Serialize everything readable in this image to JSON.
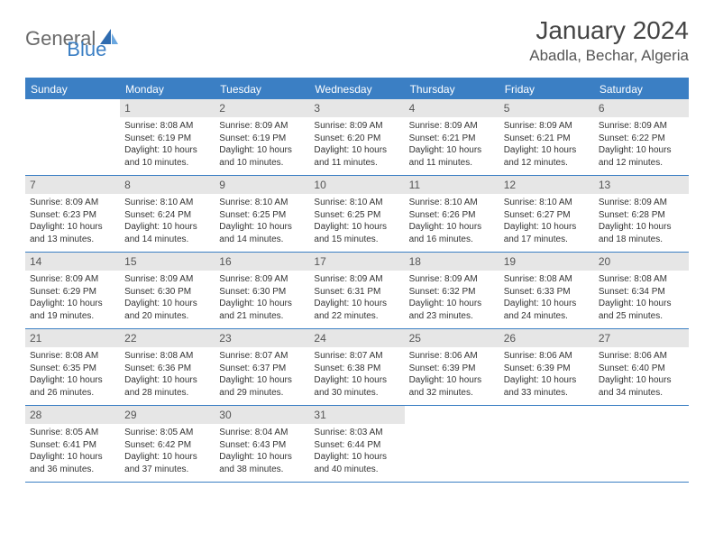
{
  "brand": {
    "part1": "General",
    "part2": "Blue"
  },
  "title": "January 2024",
  "location": "Abadla, Bechar, Algeria",
  "colors": {
    "accent": "#3b7fc4",
    "dayHeaderBg": "#e6e6e6",
    "text": "#333333"
  },
  "daysOfWeek": [
    "Sunday",
    "Monday",
    "Tuesday",
    "Wednesday",
    "Thursday",
    "Friday",
    "Saturday"
  ],
  "weeks": [
    [
      {
        "empty": true
      },
      {
        "num": "1",
        "sunrise": "Sunrise: 8:08 AM",
        "sunset": "Sunset: 6:19 PM",
        "day1": "Daylight: 10 hours",
        "day2": "and 10 minutes."
      },
      {
        "num": "2",
        "sunrise": "Sunrise: 8:09 AM",
        "sunset": "Sunset: 6:19 PM",
        "day1": "Daylight: 10 hours",
        "day2": "and 10 minutes."
      },
      {
        "num": "3",
        "sunrise": "Sunrise: 8:09 AM",
        "sunset": "Sunset: 6:20 PM",
        "day1": "Daylight: 10 hours",
        "day2": "and 11 minutes."
      },
      {
        "num": "4",
        "sunrise": "Sunrise: 8:09 AM",
        "sunset": "Sunset: 6:21 PM",
        "day1": "Daylight: 10 hours",
        "day2": "and 11 minutes."
      },
      {
        "num": "5",
        "sunrise": "Sunrise: 8:09 AM",
        "sunset": "Sunset: 6:21 PM",
        "day1": "Daylight: 10 hours",
        "day2": "and 12 minutes."
      },
      {
        "num": "6",
        "sunrise": "Sunrise: 8:09 AM",
        "sunset": "Sunset: 6:22 PM",
        "day1": "Daylight: 10 hours",
        "day2": "and 12 minutes."
      }
    ],
    [
      {
        "num": "7",
        "sunrise": "Sunrise: 8:09 AM",
        "sunset": "Sunset: 6:23 PM",
        "day1": "Daylight: 10 hours",
        "day2": "and 13 minutes."
      },
      {
        "num": "8",
        "sunrise": "Sunrise: 8:10 AM",
        "sunset": "Sunset: 6:24 PM",
        "day1": "Daylight: 10 hours",
        "day2": "and 14 minutes."
      },
      {
        "num": "9",
        "sunrise": "Sunrise: 8:10 AM",
        "sunset": "Sunset: 6:25 PM",
        "day1": "Daylight: 10 hours",
        "day2": "and 14 minutes."
      },
      {
        "num": "10",
        "sunrise": "Sunrise: 8:10 AM",
        "sunset": "Sunset: 6:25 PM",
        "day1": "Daylight: 10 hours",
        "day2": "and 15 minutes."
      },
      {
        "num": "11",
        "sunrise": "Sunrise: 8:10 AM",
        "sunset": "Sunset: 6:26 PM",
        "day1": "Daylight: 10 hours",
        "day2": "and 16 minutes."
      },
      {
        "num": "12",
        "sunrise": "Sunrise: 8:10 AM",
        "sunset": "Sunset: 6:27 PM",
        "day1": "Daylight: 10 hours",
        "day2": "and 17 minutes."
      },
      {
        "num": "13",
        "sunrise": "Sunrise: 8:09 AM",
        "sunset": "Sunset: 6:28 PM",
        "day1": "Daylight: 10 hours",
        "day2": "and 18 minutes."
      }
    ],
    [
      {
        "num": "14",
        "sunrise": "Sunrise: 8:09 AM",
        "sunset": "Sunset: 6:29 PM",
        "day1": "Daylight: 10 hours",
        "day2": "and 19 minutes."
      },
      {
        "num": "15",
        "sunrise": "Sunrise: 8:09 AM",
        "sunset": "Sunset: 6:30 PM",
        "day1": "Daylight: 10 hours",
        "day2": "and 20 minutes."
      },
      {
        "num": "16",
        "sunrise": "Sunrise: 8:09 AM",
        "sunset": "Sunset: 6:30 PM",
        "day1": "Daylight: 10 hours",
        "day2": "and 21 minutes."
      },
      {
        "num": "17",
        "sunrise": "Sunrise: 8:09 AM",
        "sunset": "Sunset: 6:31 PM",
        "day1": "Daylight: 10 hours",
        "day2": "and 22 minutes."
      },
      {
        "num": "18",
        "sunrise": "Sunrise: 8:09 AM",
        "sunset": "Sunset: 6:32 PM",
        "day1": "Daylight: 10 hours",
        "day2": "and 23 minutes."
      },
      {
        "num": "19",
        "sunrise": "Sunrise: 8:08 AM",
        "sunset": "Sunset: 6:33 PM",
        "day1": "Daylight: 10 hours",
        "day2": "and 24 minutes."
      },
      {
        "num": "20",
        "sunrise": "Sunrise: 8:08 AM",
        "sunset": "Sunset: 6:34 PM",
        "day1": "Daylight: 10 hours",
        "day2": "and 25 minutes."
      }
    ],
    [
      {
        "num": "21",
        "sunrise": "Sunrise: 8:08 AM",
        "sunset": "Sunset: 6:35 PM",
        "day1": "Daylight: 10 hours",
        "day2": "and 26 minutes."
      },
      {
        "num": "22",
        "sunrise": "Sunrise: 8:08 AM",
        "sunset": "Sunset: 6:36 PM",
        "day1": "Daylight: 10 hours",
        "day2": "and 28 minutes."
      },
      {
        "num": "23",
        "sunrise": "Sunrise: 8:07 AM",
        "sunset": "Sunset: 6:37 PM",
        "day1": "Daylight: 10 hours",
        "day2": "and 29 minutes."
      },
      {
        "num": "24",
        "sunrise": "Sunrise: 8:07 AM",
        "sunset": "Sunset: 6:38 PM",
        "day1": "Daylight: 10 hours",
        "day2": "and 30 minutes."
      },
      {
        "num": "25",
        "sunrise": "Sunrise: 8:06 AM",
        "sunset": "Sunset: 6:39 PM",
        "day1": "Daylight: 10 hours",
        "day2": "and 32 minutes."
      },
      {
        "num": "26",
        "sunrise": "Sunrise: 8:06 AM",
        "sunset": "Sunset: 6:39 PM",
        "day1": "Daylight: 10 hours",
        "day2": "and 33 minutes."
      },
      {
        "num": "27",
        "sunrise": "Sunrise: 8:06 AM",
        "sunset": "Sunset: 6:40 PM",
        "day1": "Daylight: 10 hours",
        "day2": "and 34 minutes."
      }
    ],
    [
      {
        "num": "28",
        "sunrise": "Sunrise: 8:05 AM",
        "sunset": "Sunset: 6:41 PM",
        "day1": "Daylight: 10 hours",
        "day2": "and 36 minutes."
      },
      {
        "num": "29",
        "sunrise": "Sunrise: 8:05 AM",
        "sunset": "Sunset: 6:42 PM",
        "day1": "Daylight: 10 hours",
        "day2": "and 37 minutes."
      },
      {
        "num": "30",
        "sunrise": "Sunrise: 8:04 AM",
        "sunset": "Sunset: 6:43 PM",
        "day1": "Daylight: 10 hours",
        "day2": "and 38 minutes."
      },
      {
        "num": "31",
        "sunrise": "Sunrise: 8:03 AM",
        "sunset": "Sunset: 6:44 PM",
        "day1": "Daylight: 10 hours",
        "day2": "and 40 minutes."
      },
      {
        "empty": true
      },
      {
        "empty": true
      },
      {
        "empty": true
      }
    ]
  ]
}
